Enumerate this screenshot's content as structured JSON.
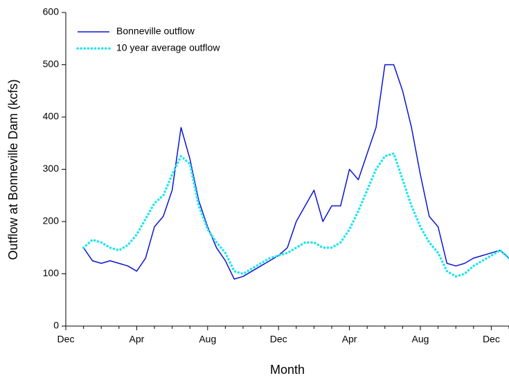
{
  "chart_data": {
    "type": "line",
    "xlabel": "Month",
    "ylabel": "Outflow at Bonneville Dam (kcfs)",
    "categories": [
      "Dec",
      null,
      null,
      null,
      null,
      null,
      null,
      null,
      "Apr",
      null,
      null,
      null,
      null,
      null,
      null,
      null,
      "Aug",
      null,
      null,
      null,
      null,
      null,
      null,
      null,
      "Dec",
      null,
      null,
      null,
      null,
      null,
      null,
      null,
      "Apr",
      null,
      null,
      null,
      null,
      null,
      null,
      null,
      "Aug",
      null,
      null,
      null,
      null,
      null,
      null,
      null,
      "Dec",
      null,
      null
    ],
    "series": [
      {
        "name": "Bonneville outflow",
        "color": "#0a14d0",
        "style": "solid",
        "values": [
          null,
          null,
          150,
          125,
          120,
          125,
          120,
          115,
          105,
          130,
          190,
          210,
          260,
          380,
          320,
          240,
          190,
          150,
          125,
          90,
          95,
          105,
          115,
          125,
          135,
          150,
          200,
          230,
          260,
          200,
          230,
          230,
          300,
          280,
          330,
          380,
          500,
          500,
          450,
          380,
          290,
          210,
          190,
          120,
          115,
          120,
          130,
          135,
          140,
          145,
          130
        ]
      },
      {
        "name": "10 year average outflow",
        "color": "#1ee6f0",
        "style": "dotted",
        "values": [
          null,
          null,
          150,
          165,
          160,
          150,
          145,
          155,
          175,
          205,
          235,
          250,
          290,
          325,
          310,
          230,
          185,
          160,
          140,
          105,
          100,
          110,
          120,
          130,
          135,
          140,
          150,
          160,
          160,
          150,
          150,
          160,
          185,
          220,
          260,
          300,
          325,
          330,
          280,
          230,
          190,
          160,
          140,
          105,
          95,
          100,
          115,
          125,
          135,
          145,
          130
        ]
      }
    ],
    "ylim": [
      0,
      600
    ],
    "yticks": [
      0,
      100,
      200,
      300,
      400,
      500,
      600
    ],
    "legend": "upper left",
    "grid": false
  }
}
